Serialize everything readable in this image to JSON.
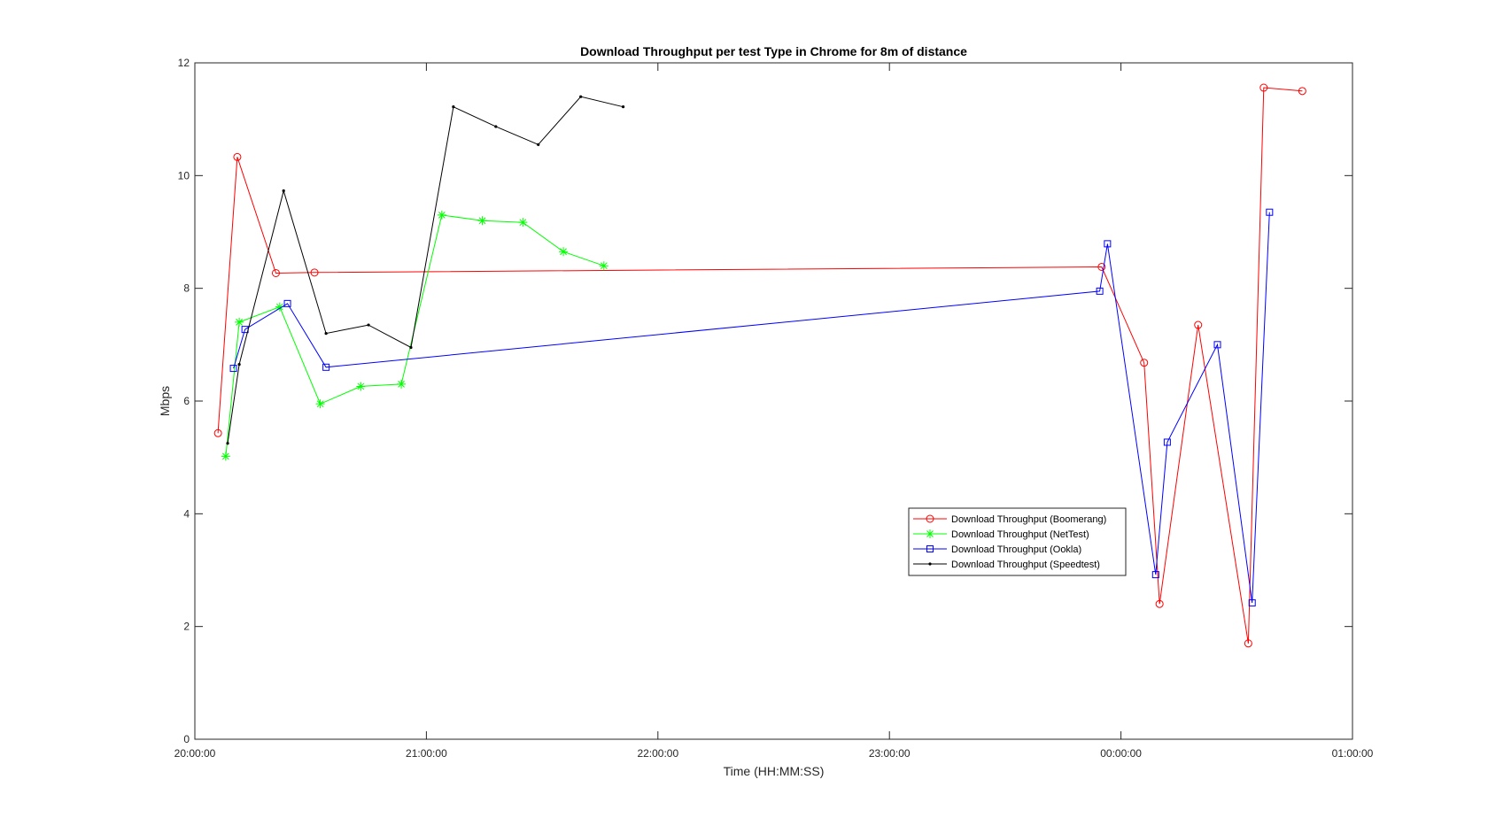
{
  "chart_data": {
    "type": "line",
    "title": "Download Throughput per test Type in Chrome for 8m of distance",
    "xlabel": "Time (HH:MM:SS)",
    "ylabel": "Mbps",
    "x_unit": "time of day",
    "xlim": [
      "20:00:00",
      "01:00:00"
    ],
    "ylim": [
      0,
      12
    ],
    "xticks": [
      "20:00:00",
      "21:00:00",
      "22:00:00",
      "23:00:00",
      "00:00:00",
      "01:00:00"
    ],
    "yticks": [
      0,
      2,
      4,
      6,
      8,
      10,
      12
    ],
    "grid": false,
    "legend_position": "middle-right",
    "series": [
      {
        "name": "Download Throughput (Boomerang)",
        "color": "#ff0000",
        "marker": "circle",
        "points": [
          [
            "20:06:00",
            5.43
          ],
          [
            "20:11:00",
            10.33
          ],
          [
            "20:21:00",
            8.27
          ],
          [
            "20:31:00",
            8.28
          ],
          [
            "23:55:00",
            8.38
          ],
          [
            "00:06:00",
            6.68
          ],
          [
            "00:10:00",
            2.4
          ],
          [
            "00:20:00",
            7.35
          ],
          [
            "00:33:00",
            1.7
          ],
          [
            "00:37:00",
            11.56
          ],
          [
            "00:47:00",
            11.5
          ]
        ]
      },
      {
        "name": "Download Throughput (NetTest)",
        "color": "#00ff00",
        "marker": "asterisk",
        "points": [
          [
            "20:08:00",
            5.02
          ],
          [
            "20:11:30",
            7.4
          ],
          [
            "20:22:00",
            7.67
          ],
          [
            "20:32:30",
            5.95
          ],
          [
            "20:43:00",
            6.26
          ],
          [
            "20:53:30",
            6.3
          ],
          [
            "21:04:00",
            9.3
          ],
          [
            "21:14:30",
            9.2
          ],
          [
            "21:25:00",
            9.17
          ],
          [
            "21:35:30",
            8.65
          ],
          [
            "21:46:00",
            8.4
          ]
        ]
      },
      {
        "name": "Download Throughput (Ookla)",
        "color": "#0000ff",
        "marker": "square",
        "points": [
          [
            "20:10:00",
            6.58
          ],
          [
            "20:13:00",
            7.27
          ],
          [
            "20:24:00",
            7.73
          ],
          [
            "20:34:00",
            6.6
          ],
          [
            "23:54:30",
            7.95
          ],
          [
            "23:56:30",
            8.79
          ],
          [
            "00:09:00",
            2.92
          ],
          [
            "00:12:00",
            5.27
          ],
          [
            "00:25:00",
            7.0
          ],
          [
            "00:34:00",
            2.42
          ],
          [
            "00:38:30",
            9.35
          ]
        ]
      },
      {
        "name": "Download Throughput (Speedtest)",
        "color": "#000000",
        "marker": "point",
        "points": [
          [
            "20:08:30",
            5.25
          ],
          [
            "20:11:30",
            6.65
          ],
          [
            "20:23:00",
            9.73
          ],
          [
            "20:34:00",
            7.2
          ],
          [
            "20:45:00",
            7.35
          ],
          [
            "20:56:00",
            6.95
          ],
          [
            "21:07:00",
            11.22
          ],
          [
            "21:18:00",
            10.87
          ],
          [
            "21:29:00",
            10.55
          ],
          [
            "21:40:00",
            11.4
          ],
          [
            "21:51:00",
            11.22
          ]
        ]
      }
    ]
  }
}
